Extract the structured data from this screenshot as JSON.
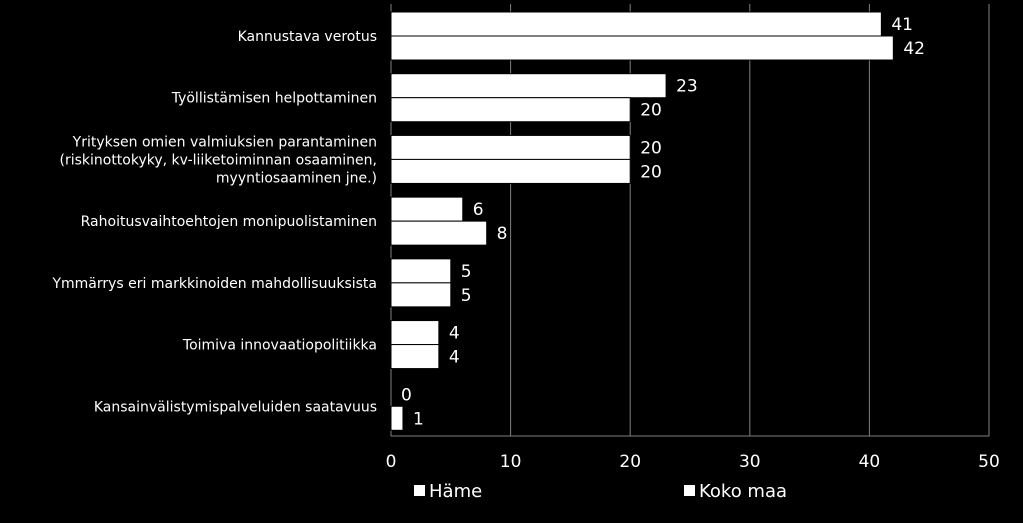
{
  "chart_data": {
    "type": "bar",
    "orientation": "horizontal",
    "categories": [
      [
        "Kannustava verotus"
      ],
      [
        "Työllistämisen helpottaminen"
      ],
      [
        "Yrityksen omien valmiuksien parantaminen",
        "(riskinottokyky, kv-liiketoiminnan osaaminen,",
        "myyntiosaaminen jne.)"
      ],
      [
        "Rahoitusvaihtoehtojen monipuolistaminen"
      ],
      [
        "Ymmärrys eri markkinoiden mahdollisuuksista"
      ],
      [
        "Toimiva innovaatiopolitiikka"
      ],
      [
        "Kansainvälistymispalveluiden saatavuus"
      ]
    ],
    "series": [
      {
        "name": "Häme",
        "values": [
          41,
          23,
          20,
          6,
          5,
          4,
          0
        ]
      },
      {
        "name": "Koko maa",
        "values": [
          42,
          20,
          20,
          8,
          5,
          4,
          1
        ]
      }
    ],
    "xlim": [
      0,
      50
    ],
    "xticks": [
      "0",
      "10",
      "20",
      "30",
      "40",
      "50"
    ],
    "grid": true,
    "legend_position": "bottom",
    "colors": {
      "background": "#000000",
      "bar_fill": "#ffffff",
      "bar_stroke": "#000000",
      "grid": "#808080",
      "text": "#ffffff"
    }
  }
}
